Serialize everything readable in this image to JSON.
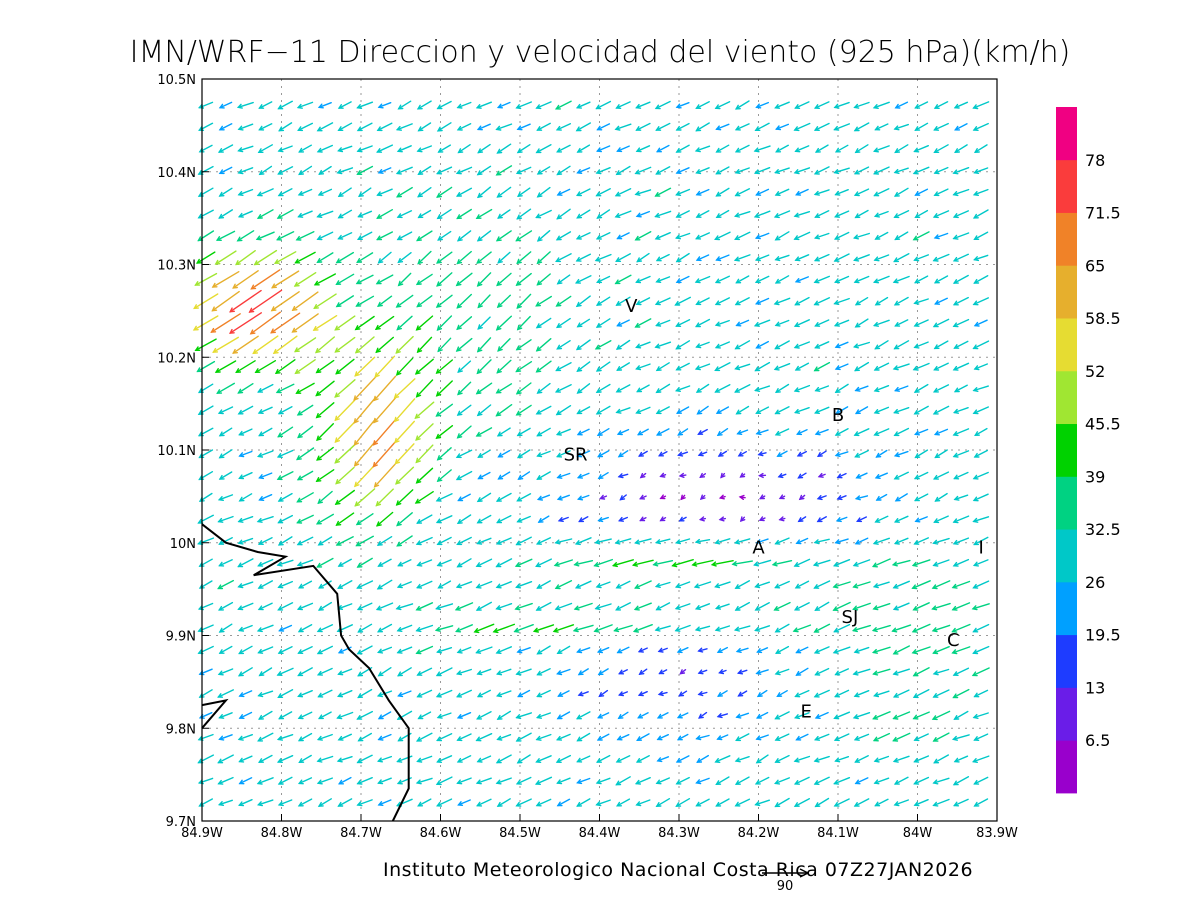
{
  "title": "IMN/WRF−11 Direccion y velocidad del viento (925 hPa)(km/h)",
  "footer": "Instituto Meteorologico Nacional Costa Rica 07Z27JAN2026",
  "reference_vector": {
    "label": "90",
    "speed": 90
  },
  "map": {
    "lon_range": [
      -84.9,
      -83.9
    ],
    "lat_range": [
      9.7,
      10.5
    ],
    "grid": true,
    "lon_ticks": [
      {
        "value": -84.9,
        "label": "84.9W"
      },
      {
        "value": -84.8,
        "label": "84.8W"
      },
      {
        "value": -84.7,
        "label": "84.7W"
      },
      {
        "value": -84.6,
        "label": "84.6W"
      },
      {
        "value": -84.5,
        "label": "84.5W"
      },
      {
        "value": -84.4,
        "label": "84.4W"
      },
      {
        "value": -84.3,
        "label": "84.3W"
      },
      {
        "value": -84.2,
        "label": "84.2W"
      },
      {
        "value": -84.1,
        "label": "84.1W"
      },
      {
        "value": -84.0,
        "label": "84W"
      },
      {
        "value": -83.9,
        "label": "83.9W"
      }
    ],
    "lat_ticks": [
      {
        "value": 9.7,
        "label": "9.7N"
      },
      {
        "value": 9.8,
        "label": "9.8N"
      },
      {
        "value": 9.9,
        "label": "9.9N"
      },
      {
        "value": 10.0,
        "label": "10N"
      },
      {
        "value": 10.1,
        "label": "10.1N"
      },
      {
        "value": 10.2,
        "label": "10.2N"
      },
      {
        "value": 10.3,
        "label": "10.3N"
      },
      {
        "value": 10.4,
        "label": "10.4N"
      },
      {
        "value": 10.5,
        "label": "10.5N"
      }
    ],
    "cities": [
      {
        "label": "V",
        "lon": -84.36,
        "lat": 10.255
      },
      {
        "label": "SR",
        "lon": -84.43,
        "lat": 10.095
      },
      {
        "label": "B",
        "lon": -84.1,
        "lat": 10.138
      },
      {
        "label": "A",
        "lon": -84.2,
        "lat": 9.995
      },
      {
        "label": "I",
        "lon": -83.92,
        "lat": 9.995
      },
      {
        "label": "SJ",
        "lon": -84.085,
        "lat": 9.92
      },
      {
        "label": "C",
        "lon": -83.955,
        "lat": 9.895
      },
      {
        "label": "E",
        "lon": -84.14,
        "lat": 9.818
      }
    ],
    "coastline": [
      [
        -84.9,
        10.02
      ],
      [
        -84.87,
        10.0
      ],
      [
        -84.83,
        9.99
      ],
      [
        -84.795,
        9.985
      ],
      [
        -84.835,
        9.965
      ],
      [
        -84.76,
        9.975
      ],
      [
        -84.73,
        9.945
      ],
      [
        -84.725,
        9.9
      ],
      [
        -84.715,
        9.885
      ],
      [
        -84.69,
        9.865
      ],
      [
        -84.665,
        9.83
      ],
      [
        -84.64,
        9.8
      ],
      [
        -84.64,
        9.735
      ],
      [
        -84.66,
        9.7
      ]
    ],
    "peninsula": [
      [
        -84.9,
        9.825
      ],
      [
        -84.87,
        9.83
      ],
      [
        -84.9,
        9.8
      ]
    ]
  },
  "colorbar": {
    "colors": [
      "#9900cc",
      "#6a1de8",
      "#1e3cff",
      "#00a0ff",
      "#00c8c8",
      "#00d282",
      "#00d200",
      "#a0e632",
      "#e6dc32",
      "#e6af2d",
      "#f08228",
      "#fa3c3c",
      "#f00082"
    ],
    "labels": [
      "6.5",
      "13",
      "19.5",
      "26",
      "32.5",
      "39",
      "45.5",
      "52",
      "58.5",
      "65",
      "71.5",
      "78"
    ],
    "bounds": [
      0,
      6.5,
      13,
      19.5,
      26,
      32.5,
      39,
      45.5,
      52,
      58.5,
      65,
      71.5,
      78,
      84.5
    ]
  }
}
